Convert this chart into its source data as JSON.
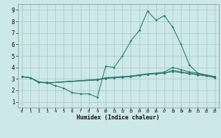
{
  "xlabel": "Humidex (Indice chaleur)",
  "xlim": [
    -0.5,
    23.5
  ],
  "ylim": [
    0.5,
    9.5
  ],
  "yticks": [
    1,
    2,
    3,
    4,
    5,
    6,
    7,
    8,
    9
  ],
  "xticks": [
    0,
    1,
    2,
    3,
    4,
    5,
    6,
    7,
    8,
    9,
    10,
    11,
    12,
    13,
    14,
    15,
    16,
    17,
    18,
    19,
    20,
    21,
    22,
    23
  ],
  "bg_color": "#cce8e8",
  "grid_color": "#aacccc",
  "line_color": "#2d7a72",
  "lines": [
    {
      "x": [
        0,
        1,
        2,
        3,
        4,
        5,
        6,
        7,
        8,
        9,
        10,
        11,
        12,
        13,
        14,
        15,
        16,
        17,
        18,
        19,
        20,
        21,
        22,
        23
      ],
      "y": [
        3.2,
        3.1,
        2.7,
        2.7,
        2.4,
        2.2,
        1.8,
        1.7,
        1.7,
        1.4,
        4.1,
        4.0,
        5.0,
        6.3,
        7.2,
        8.9,
        8.1,
        8.5,
        7.5,
        6.0,
        4.2,
        3.5,
        3.3,
        3.1
      ]
    },
    {
      "x": [
        0,
        1,
        2,
        3,
        9,
        10,
        11,
        12,
        13,
        14,
        15,
        16,
        17,
        18,
        19,
        20,
        21,
        22,
        23
      ],
      "y": [
        3.2,
        3.1,
        2.7,
        2.65,
        2.9,
        3.05,
        3.1,
        3.15,
        3.2,
        3.3,
        3.4,
        3.45,
        3.5,
        3.65,
        3.55,
        3.45,
        3.35,
        3.25,
        3.15
      ]
    },
    {
      "x": [
        0,
        1,
        2,
        3,
        9,
        10,
        11,
        12,
        13,
        14,
        15,
        16,
        17,
        18,
        19,
        20,
        21,
        22,
        23
      ],
      "y": [
        3.2,
        3.1,
        2.75,
        2.65,
        2.95,
        3.05,
        3.1,
        3.15,
        3.2,
        3.3,
        3.4,
        3.45,
        3.5,
        3.75,
        3.6,
        3.5,
        3.4,
        3.3,
        3.2
      ]
    },
    {
      "x": [
        0,
        1,
        2,
        3,
        9,
        10,
        11,
        12,
        13,
        14,
        15,
        16,
        17,
        18,
        19,
        20,
        21,
        22,
        23
      ],
      "y": [
        3.2,
        3.1,
        2.75,
        2.65,
        2.95,
        3.1,
        3.15,
        3.2,
        3.25,
        3.35,
        3.45,
        3.5,
        3.6,
        4.0,
        3.8,
        3.6,
        3.5,
        3.35,
        3.2
      ]
    }
  ]
}
